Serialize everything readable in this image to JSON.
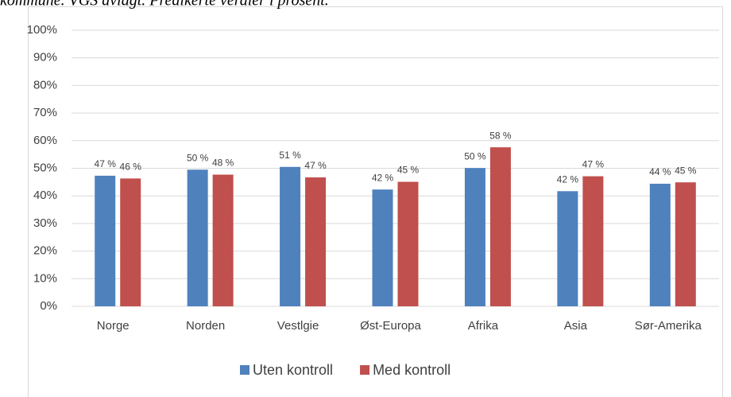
{
  "chart_data": {
    "type": "bar",
    "title": "kommune. VGS avlagt. Predikerte verdier i prosent.",
    "categories": [
      "Norge",
      "Norden",
      "Vestlgie",
      "Øst-Europa",
      "Afrika",
      "Asia",
      "Sør-Amerika"
    ],
    "series": [
      {
        "name": "Uten kontroll",
        "color": "#4f81bd",
        "values": [
          47.3,
          49.5,
          50.5,
          42.3,
          50.1,
          41.7,
          44.4
        ],
        "value_labels": [
          "47 %",
          "50 %",
          "51 %",
          "42 %",
          "50 %",
          "42 %",
          "44 %"
        ]
      },
      {
        "name": "Med kontroll",
        "color": "#c0504d",
        "values": [
          46.3,
          47.7,
          46.7,
          45.1,
          57.6,
          47.1,
          44.9
        ],
        "value_labels": [
          "46 %",
          "48 %",
          "47 %",
          "45 %",
          "58 %",
          "47 %",
          "45 %"
        ]
      }
    ],
    "ylim": [
      0,
      100
    ],
    "yticks": [
      {
        "value": 0,
        "label": "0%"
      },
      {
        "value": 10,
        "label": "10%"
      },
      {
        "value": 20,
        "label": "20%"
      },
      {
        "value": 30,
        "label": "30%"
      },
      {
        "value": 40,
        "label": "40%"
      },
      {
        "value": 50,
        "label": "50%"
      },
      {
        "value": 60,
        "label": "60%"
      },
      {
        "value": 70,
        "label": "70%"
      },
      {
        "value": 80,
        "label": "80%"
      },
      {
        "value": 90,
        "label": "90%"
      },
      {
        "value": 100,
        "label": "100%"
      }
    ],
    "grid": true,
    "legend": "bottom"
  }
}
